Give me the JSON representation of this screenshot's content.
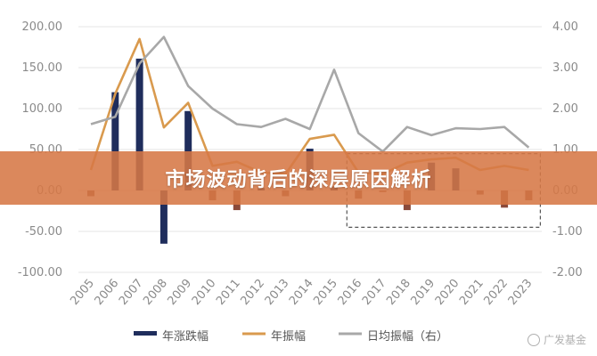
{
  "banner": {
    "title": "市场波动背后的深层原因解析"
  },
  "watermark": {
    "text": "广发基金"
  },
  "colors": {
    "bar": "#1f2d5c",
    "bar_neg": "#8b4a3a",
    "line_amp": "#d99a4e",
    "line_daily": "#a8a8a8",
    "grid": "#e6e6e6"
  },
  "chart_data": {
    "type": "bar",
    "categories": [
      "2005",
      "2006",
      "2007",
      "2008",
      "2009",
      "2010",
      "2011",
      "2012",
      "2013",
      "2014",
      "2015",
      "2016",
      "2017",
      "2018",
      "2019",
      "2020",
      "2021",
      "2022",
      "2023"
    ],
    "left_axis": {
      "ticks": [
        "200.00",
        "150.00",
        "100.00",
        "50.00",
        "0.00",
        "-50.00",
        "-100.00"
      ],
      "ylim": [
        -100,
        200
      ]
    },
    "right_axis": {
      "ticks": [
        "4.00",
        "3.00",
        "2.00",
        "1.00",
        "0.00",
        "-1.00",
        "-2.00"
      ],
      "ylim": [
        -2,
        4
      ]
    },
    "series": [
      {
        "name": "年涨跌幅",
        "type": "bar",
        "axis": "left",
        "values": [
          -7,
          120,
          161,
          -65,
          97,
          -12,
          -24,
          3,
          -7,
          51,
          5,
          -10,
          -2,
          -24,
          34,
          27,
          -5,
          -21,
          -12
        ]
      },
      {
        "name": "年振幅",
        "type": "line",
        "axis": "left",
        "values": [
          25,
          118,
          185,
          77,
          107,
          30,
          35,
          22,
          20,
          63,
          68,
          22,
          20,
          34,
          38,
          40,
          25,
          30,
          25
        ]
      },
      {
        "name": "日均振幅（右）",
        "type": "line",
        "axis": "right",
        "values": [
          1.62,
          1.8,
          3.1,
          3.75,
          2.55,
          2.0,
          1.62,
          1.55,
          1.75,
          1.5,
          2.95,
          1.4,
          0.95,
          1.55,
          1.35,
          1.52,
          1.5,
          1.55,
          1.05
        ]
      }
    ],
    "legend": {
      "position": "bottom",
      "items": [
        "年涨跌幅",
        "年振幅",
        "日均振幅（右）"
      ]
    },
    "annotation": {
      "type": "dashed-box",
      "x_from": "2016",
      "x_to": "2023"
    },
    "grid": true
  }
}
